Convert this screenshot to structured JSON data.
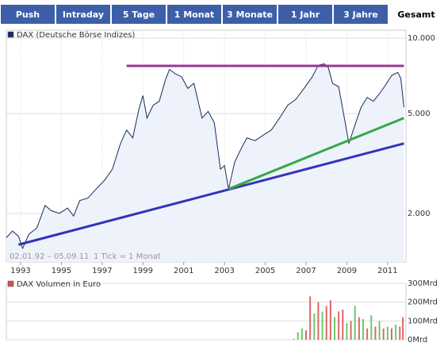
{
  "tabs": {
    "items": [
      "Push",
      "Intraday",
      "5 Tage",
      "1 Monat",
      "3 Monate",
      "1 Jahr",
      "3 Jahre",
      "Gesamt"
    ],
    "selected": 7
  },
  "chart_data": [
    {
      "type": "line",
      "legend": "DAX (Deutsche Börse Indizes)",
      "legend_color": "#1c2a6a",
      "annotations": [
        "02.01.92 – 05.09.11",
        "1 Tick = 1 Monat"
      ],
      "log_scale": true,
      "grid": true,
      "color": "#1c2a5a",
      "fill": "#eef2fb",
      "xlim": [
        1992.3,
        2011.9
      ],
      "xticks": [
        1993,
        1995,
        1997,
        1999,
        2001,
        2003,
        2005,
        2007,
        2009,
        2011
      ],
      "ylim": [
        1280,
        10760
      ],
      "yticks": [
        {
          "value": 10000,
          "label": "10.000"
        },
        {
          "value": 5000,
          "label": "5.000"
        },
        {
          "value": 2000,
          "label": "2.000"
        }
      ],
      "x": [
        1992.3,
        1992.6,
        1992.9,
        1993.1,
        1993.4,
        1993.8,
        1994.2,
        1994.5,
        1994.9,
        1995.3,
        1995.6,
        1995.9,
        1996.3,
        1996.7,
        1997.1,
        1997.5,
        1997.9,
        1998.2,
        1998.5,
        1998.8,
        1999.0,
        1999.2,
        1999.5,
        1999.8,
        2000.1,
        2000.3,
        2000.6,
        2000.9,
        2001.2,
        2001.5,
        2001.9,
        2002.2,
        2002.5,
        2002.8,
        2003.0,
        2003.2,
        2003.5,
        2003.8,
        2004.1,
        2004.5,
        2004.9,
        2005.3,
        2005.7,
        2006.1,
        2006.5,
        2006.9,
        2007.3,
        2007.6,
        2007.9,
        2008.1,
        2008.3,
        2008.6,
        2008.9,
        2009.1,
        2009.4,
        2009.7,
        2010.0,
        2010.3,
        2010.6,
        2010.9,
        2011.2,
        2011.5,
        2011.65,
        2011.8
      ],
      "values": [
        1600,
        1700,
        1620,
        1450,
        1650,
        1750,
        2150,
        2050,
        2000,
        2100,
        1950,
        2250,
        2300,
        2500,
        2700,
        3000,
        3800,
        4300,
        4000,
        5200,
        5900,
        4800,
        5400,
        5600,
        6800,
        7500,
        7200,
        7000,
        6300,
        6600,
        4800,
        5100,
        4600,
        3000,
        3100,
        2500,
        3200,
        3600,
        4000,
        3900,
        4100,
        4300,
        4800,
        5400,
        5700,
        6300,
        7000,
        7800,
        7900,
        7600,
        6600,
        6400,
        4700,
        3800,
        4500,
        5300,
        5800,
        5600,
        6000,
        6500,
        7100,
        7300,
        6900,
        5300
      ],
      "lines": [
        {
          "color": "#993399",
          "x": [
            1998.2,
            2011.8
          ],
          "values": [
            7750,
            7750
          ]
        },
        {
          "color": "#3333bb",
          "x": [
            1992.9,
            2011.8
          ],
          "values": [
            1500,
            3800
          ]
        },
        {
          "color": "#33aa44",
          "x": [
            2003.2,
            2011.8
          ],
          "values": [
            2500,
            4800
          ]
        }
      ]
    },
    {
      "type": "bar",
      "legend": "DAX Volumen in Euro",
      "legend_color": "#cc5555",
      "xlim": [
        1992.3,
        2011.9
      ],
      "ylim": [
        0,
        300
      ],
      "yticks": [
        {
          "value": 0,
          "label": "0Mrd"
        },
        {
          "value": 100,
          "label": "100Mrd"
        },
        {
          "value": 200,
          "label": "200Mrd"
        },
        {
          "value": 300,
          "label": "300Mrd"
        }
      ],
      "x": [
        2006.4,
        2006.6,
        2006.8,
        2007.0,
        2007.2,
        2007.4,
        2007.6,
        2007.8,
        2008.0,
        2008.2,
        2008.4,
        2008.6,
        2008.8,
        2009.0,
        2009.2,
        2009.4,
        2009.6,
        2009.8,
        2010.0,
        2010.2,
        2010.4,
        2010.6,
        2010.8,
        2011.0,
        2011.2,
        2011.4,
        2011.6,
        2011.75
      ],
      "values": [
        5,
        40,
        60,
        50,
        230,
        140,
        200,
        150,
        180,
        210,
        120,
        150,
        160,
        90,
        100,
        180,
        120,
        110,
        60,
        130,
        70,
        100,
        60,
        70,
        60,
        80,
        70,
        120
      ],
      "colors": [
        "#66cc66",
        "#66cc66",
        "#66cc66",
        "#dd6666",
        "#dd6666",
        "#66cc66",
        "#dd6666",
        "#66cc66",
        "#dd6666",
        "#dd6666",
        "#66cc66",
        "#dd6666",
        "#dd6666",
        "#66cc66",
        "#dd6666",
        "#66cc66",
        "#dd6666",
        "#66cc66",
        "#dd6666",
        "#66cc66",
        "#dd6666",
        "#66cc66",
        "#dd6666",
        "#66cc66",
        "#dd6666",
        "#66cc66",
        "#dd6666",
        "#dd6666"
      ]
    }
  ]
}
